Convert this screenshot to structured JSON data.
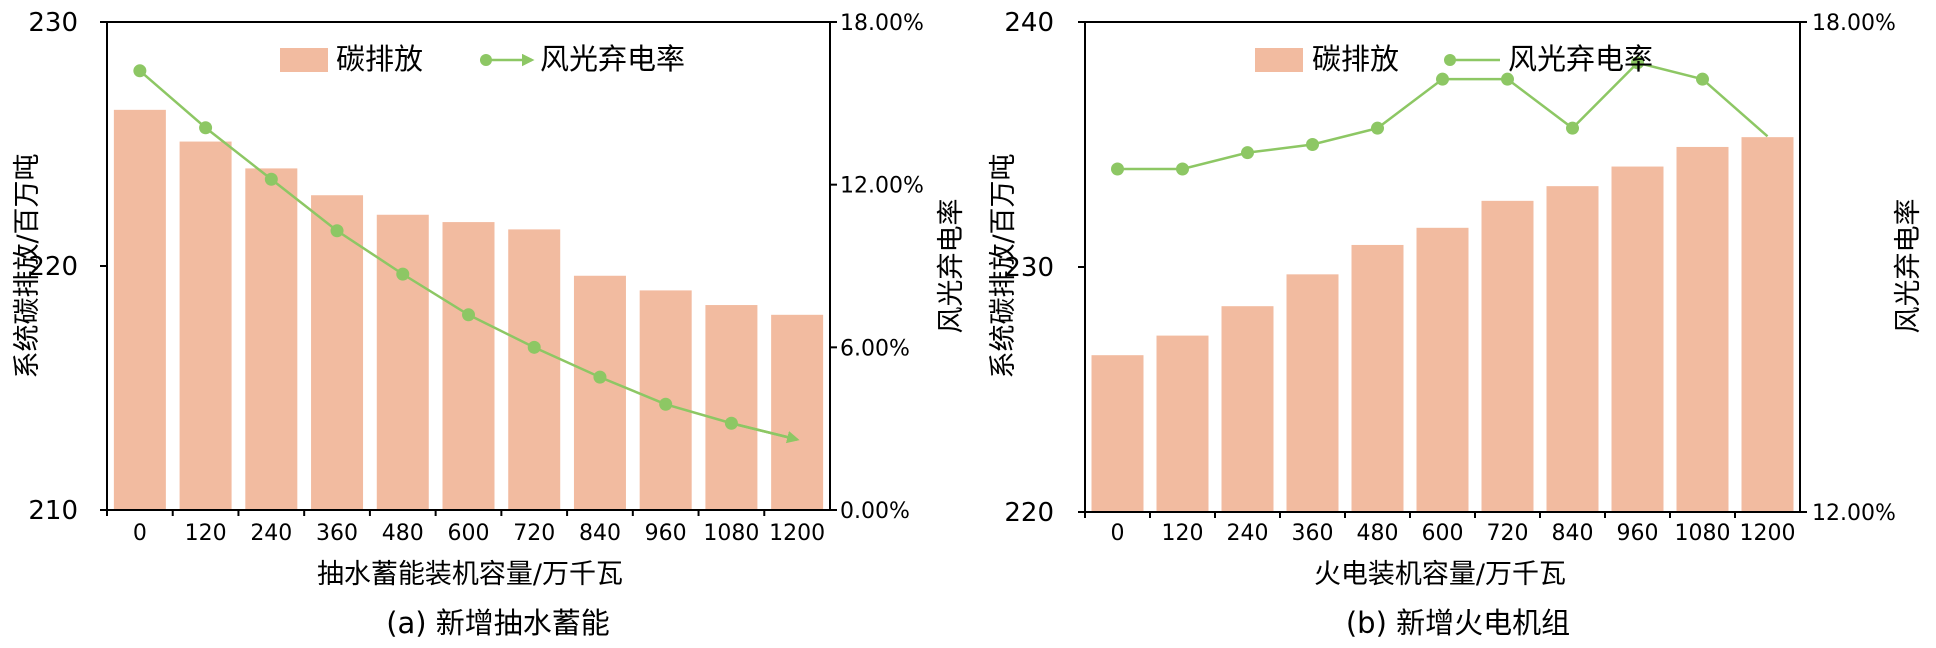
{
  "colors": {
    "bar": "#f2bba0",
    "line": "#8dc764"
  },
  "charts": [
    {
      "id": "a",
      "caption": "(a) 新增抽水蓄能",
      "legend": {
        "bar_label": "碳排放",
        "line_label": "风光弃电率"
      }
    },
    {
      "id": "b",
      "caption": "(b) 新增火电机组",
      "legend": {
        "bar_label": "碳排放",
        "line_label": "风光弃电率"
      }
    }
  ],
  "chart_data": [
    {
      "type": "bar+line",
      "title": "(a) 新增抽水蓄能",
      "xlabel": "抽水蓄能装机容量/万千瓦",
      "ylabel": "系统碳排放/百万吨",
      "y2label": "风光弃电率",
      "categories": [
        "0",
        "120",
        "240",
        "360",
        "480",
        "600",
        "720",
        "840",
        "960",
        "1080",
        "1200"
      ],
      "ylim": [
        210,
        230
      ],
      "yticks": [
        "210",
        "220",
        "230"
      ],
      "y2lim": [
        0,
        18
      ],
      "y2ticks": [
        "0.00%",
        "6.00%",
        "12.00%",
        "18.00%"
      ],
      "series": [
        {
          "name": "碳排放",
          "type": "bar",
          "axis": "left",
          "values": [
            226.4,
            225.1,
            224.0,
            222.9,
            222.1,
            221.8,
            221.5,
            219.6,
            219.0,
            218.4,
            218.0
          ]
        },
        {
          "name": "风光弃电率",
          "type": "line",
          "axis": "right",
          "unit": "%",
          "arrow_end": true,
          "values": [
            16.2,
            14.1,
            12.2,
            10.3,
            8.7,
            7.2,
            6.0,
            4.9,
            3.9,
            3.2,
            2.6
          ]
        }
      ],
      "legend_position": "top"
    },
    {
      "type": "bar+line",
      "title": "(b) 新增火电机组",
      "xlabel": "火电装机容量/万千瓦",
      "ylabel": "系统碳排放/百万吨",
      "y2label": "风光弃电率",
      "categories": [
        "0",
        "120",
        "240",
        "360",
        "480",
        "600",
        "720",
        "840",
        "960",
        "1080",
        "1200"
      ],
      "ylim": [
        220,
        240
      ],
      "yticks": [
        "220",
        "230",
        "240"
      ],
      "y2lim": [
        12,
        18
      ],
      "y2ticks": [
        "12.00%",
        "18.00%"
      ],
      "series": [
        {
          "name": "碳排放",
          "type": "bar",
          "axis": "left",
          "values": [
            226.4,
            227.2,
            228.4,
            229.7,
            230.9,
            231.6,
            232.7,
            233.3,
            234.1,
            234.9,
            235.3
          ]
        },
        {
          "name": "风光弃电率",
          "type": "line",
          "axis": "right",
          "unit": "%",
          "values": [
            16.2,
            16.2,
            16.4,
            16.5,
            16.7,
            17.3,
            17.3,
            16.7,
            17.5,
            17.3,
            16.6
          ]
        }
      ],
      "legend_position": "top"
    }
  ]
}
